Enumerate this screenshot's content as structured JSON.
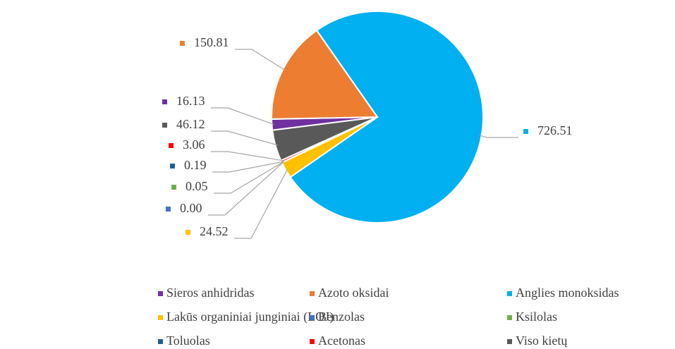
{
  "chart_data": {
    "type": "pie",
    "categories": [
      "Sieros anhidridas",
      "Azoto oksidai",
      "Anglies monoksidas",
      "Lakūs organiniai junginiai (LOJ)",
      "Benzolas",
      "Ksilolas",
      "Toluolas",
      "Acetonas",
      "Viso kietų"
    ],
    "values": [
      16.13,
      150.81,
      726.51,
      24.52,
      0.0,
      0.05,
      0.19,
      3.06,
      46.12
    ],
    "value_labels": [
      "16.13",
      "150.81",
      "726.51",
      "24.52",
      "0.00",
      "0.05",
      "0.19",
      "3.06",
      "46.12"
    ],
    "colors": [
      "#7030a0",
      "#ed7d31",
      "#00b0f0",
      "#ffc000",
      "#4472c4",
      "#70ad47",
      "#255e91",
      "#ff0000",
      "#595959"
    ],
    "legend": "bottom"
  }
}
